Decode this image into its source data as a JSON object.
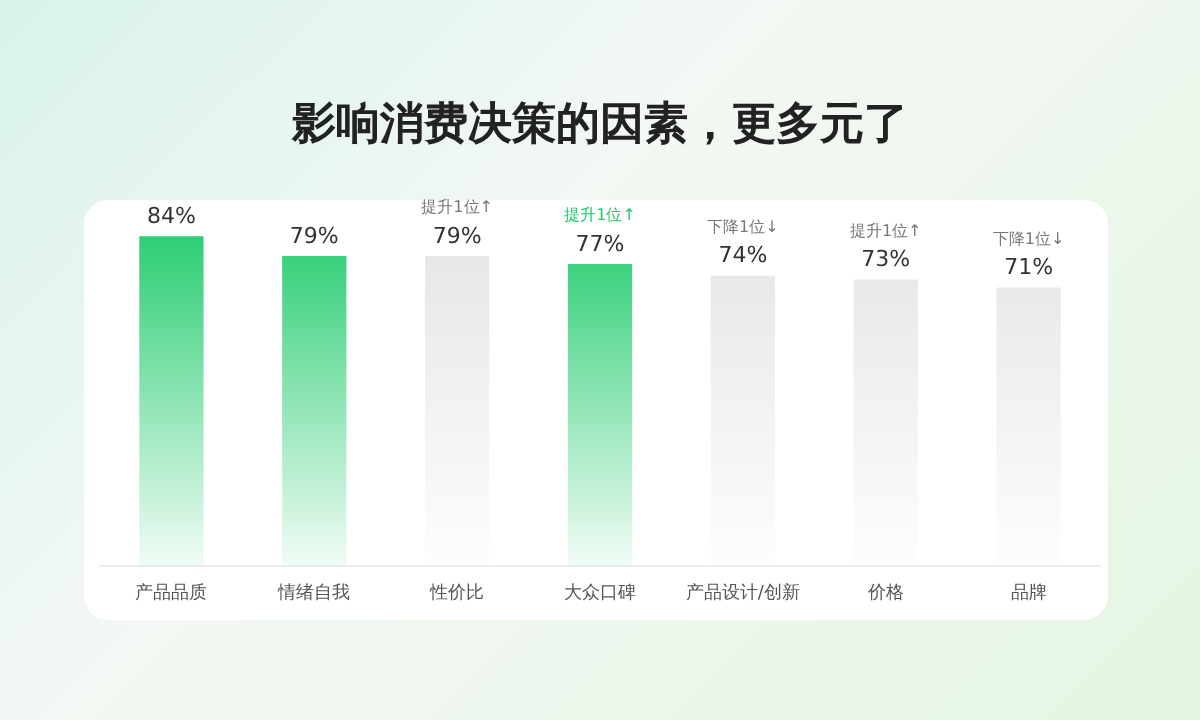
{
  "chart_data": {
    "type": "bar",
    "title": "影响消费决策的因素，更多元了",
    "categories": [
      "产品品质",
      "情绪自我",
      "性价比",
      "大众口碑",
      "产品设计/创新",
      "价格",
      "品牌"
    ],
    "values": [
      84,
      79,
      79,
      77,
      74,
      73,
      71
    ],
    "colors": [
      "#1fca6b",
      "#1fca6b",
      "#e4e4e4",
      "#1fca6b",
      "#e4e4e4",
      "#e4e4e4",
      "#e4e4e4"
    ],
    "value_labels": [
      "84%",
      "79%",
      "79%",
      "77%",
      "74%",
      "73%",
      "71%"
    ],
    "tick_labels": "x",
    "grid": false,
    "legend": false,
    "annotations": [
      {
        "text": "提升1位↑",
        "x": "性价比",
        "y": 79
      },
      {
        "text": "提升1位↑",
        "x": "大众口碑",
        "y": 77
      },
      {
        "text": "下降1位↓",
        "x": "产品设计/创新",
        "y": 74
      },
      {
        "text": "提升1位↑",
        "x": "价格",
        "y": 73
      },
      {
        "text": "下降1位↓",
        "x": "品牌",
        "y": 71
      }
    ]
  }
}
